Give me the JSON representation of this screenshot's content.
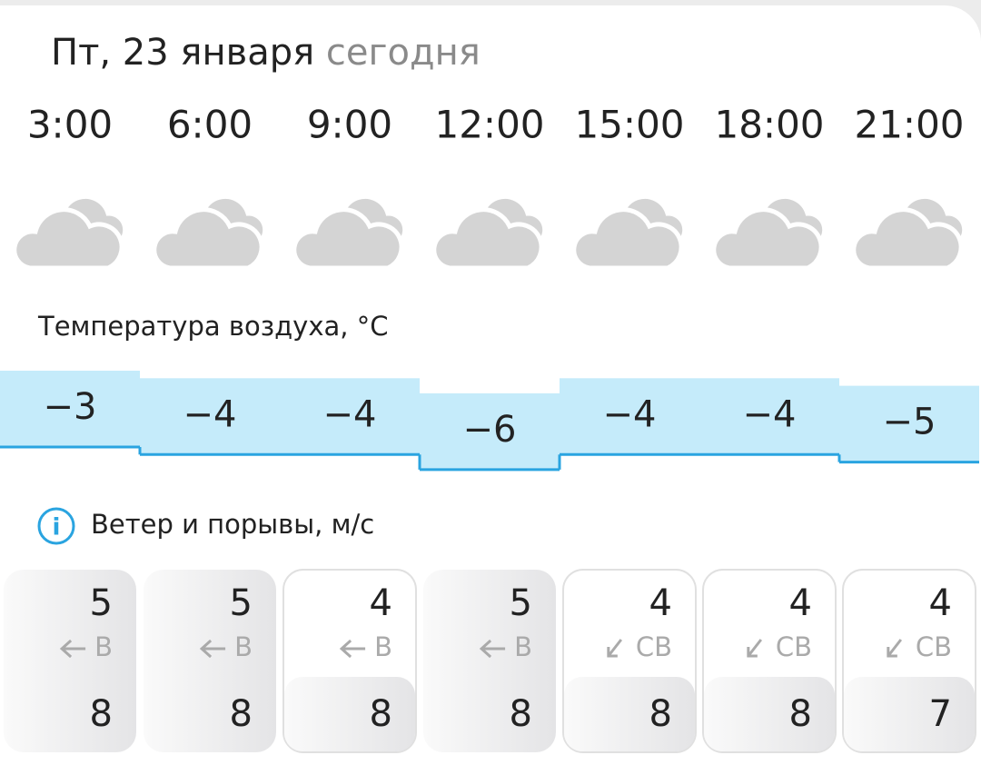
{
  "header": {
    "day": "Пт, 23 января",
    "today": "сегодня"
  },
  "hours": [
    "3:00",
    "6:00",
    "9:00",
    "12:00",
    "15:00",
    "18:00",
    "21:00"
  ],
  "temperature": {
    "label": "Температура воздуха, °C",
    "values": [
      -3,
      -4,
      -4,
      -6,
      -4,
      -4,
      -5
    ],
    "value_labels": [
      "−3",
      "−4",
      "−4",
      "−6",
      "−4",
      "−4",
      "−5"
    ]
  },
  "wind": {
    "label": "Ветер и порывы, м/с",
    "speed": [
      5,
      5,
      4,
      5,
      4,
      4,
      4
    ],
    "direction": [
      "В",
      "В",
      "В",
      "В",
      "СВ",
      "СВ",
      "СВ"
    ],
    "gusts": [
      8,
      8,
      8,
      8,
      8,
      8,
      7
    ]
  }
}
